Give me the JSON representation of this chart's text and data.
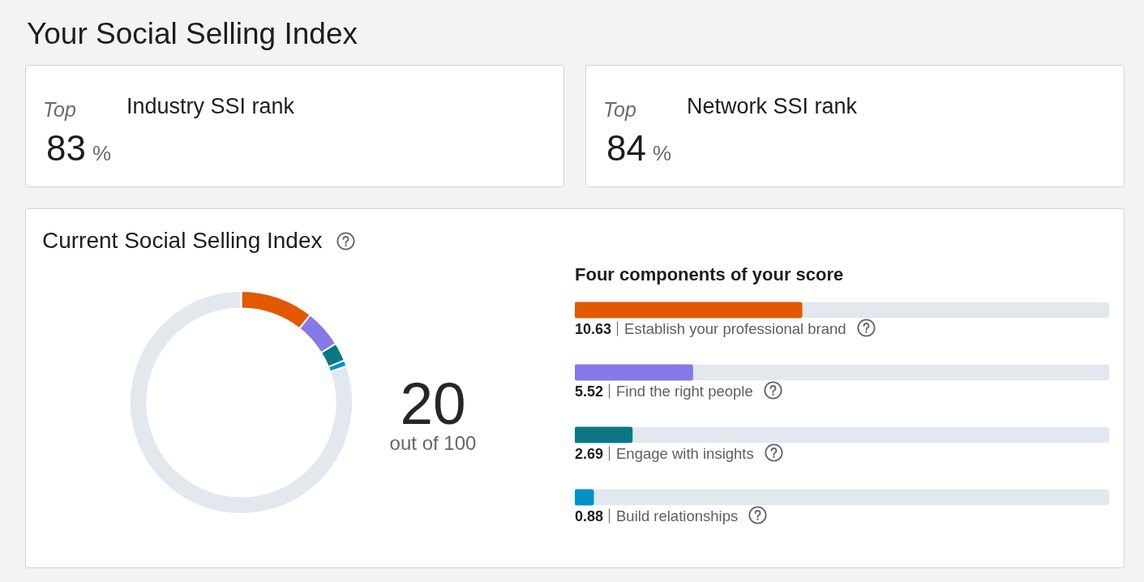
{
  "chart_data": [
    {
      "type": "other",
      "title": "Your Social Selling Index",
      "categories": [
        "Industry SSI rank",
        "Network SSI rank"
      ],
      "values": [
        83,
        84
      ],
      "data_labels": true,
      "annotations": [
        "Top",
        "%"
      ]
    },
    {
      "type": "donut",
      "title": "Current Social Selling Index",
      "categories": [
        null,
        null,
        null,
        null,
        null
      ],
      "values": [
        10.63,
        5.52,
        2.69,
        0.88,
        80.28
      ],
      "colors": [
        "#e35900",
        "#8679e8",
        "#0b7785",
        "#0091ca",
        "#e1e8ee"
      ],
      "annotations": [
        "20",
        "out of 100"
      ]
    },
    {
      "type": "bar",
      "orientation": "horizontal",
      "title": "Four components of your score",
      "categories": [
        "Establish your professional brand",
        "Find the right people",
        "Engage with insights",
        "Build relationships"
      ],
      "values": [
        10.63,
        5.52,
        2.69,
        0.88
      ],
      "colors": [
        "#e35900",
        "#8679e8",
        "#0b7785",
        "#0091ca"
      ],
      "xlim": [
        0,
        25
      ],
      "data_labels": true,
      "tick_labels": "y"
    }
  ]
}
